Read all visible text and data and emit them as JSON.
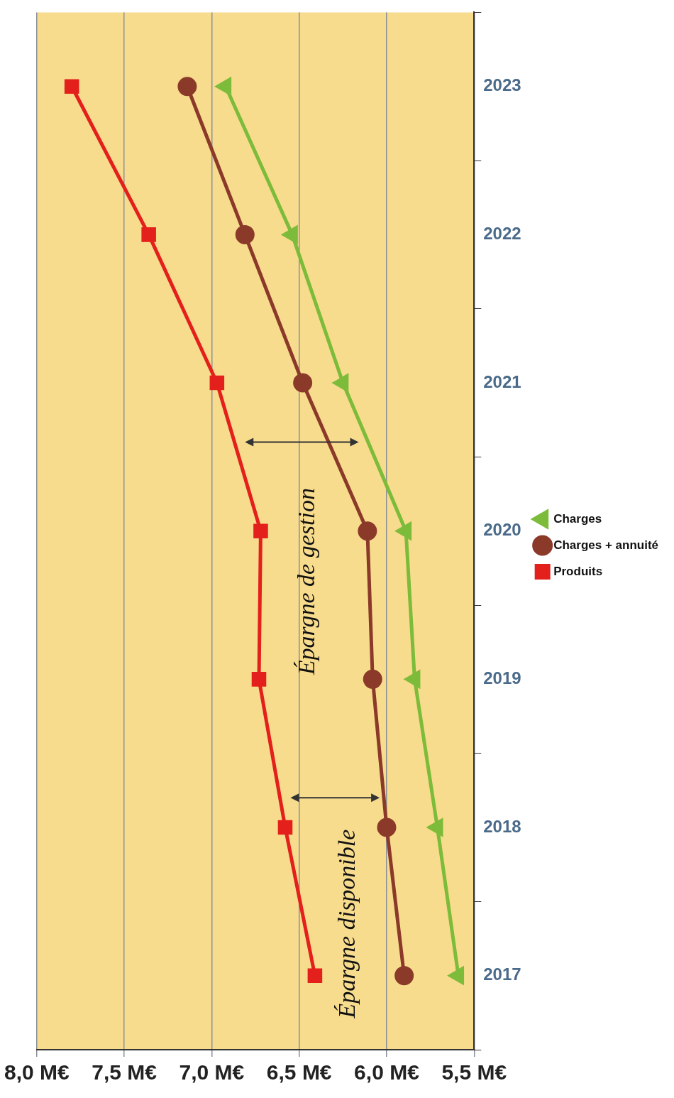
{
  "chart_data": {
    "type": "line",
    "orientation": "horizontal",
    "categories": [
      "2023",
      "2022",
      "2021",
      "2020",
      "2019",
      "2018",
      "2017"
    ],
    "series": [
      {
        "name": "Charges",
        "color": "#7dbb3a",
        "marker": "triangle",
        "values": [
          6.92,
          6.54,
          6.25,
          5.89,
          5.84,
          5.71,
          5.59
        ]
      },
      {
        "name": "Charges + annuité",
        "color": "#8b3a2a",
        "marker": "circle",
        "values": [
          7.14,
          6.81,
          6.48,
          6.11,
          6.08,
          6.0,
          5.9
        ]
      },
      {
        "name": "Produits",
        "color": "#e3201b",
        "marker": "square",
        "values": [
          7.8,
          7.36,
          6.97,
          6.72,
          6.73,
          6.58,
          6.41
        ]
      }
    ],
    "xlim": [
      8.0,
      5.5
    ],
    "xticks": [
      {
        "value": 8.0,
        "label": "8,0 M€"
      },
      {
        "value": 7.5,
        "label": "7,5 M€"
      },
      {
        "value": 7.0,
        "label": "7,0 M€"
      },
      {
        "value": 6.5,
        "label": "6,5 M€"
      },
      {
        "value": 6.0,
        "label": "6,0 M€"
      },
      {
        "value": 5.5,
        "label": "5,5 M€"
      }
    ],
    "grid": "x",
    "legend": "right",
    "line_style": "solid",
    "annotations": [
      "Épargne de gestion",
      "Épargne disponible"
    ]
  }
}
